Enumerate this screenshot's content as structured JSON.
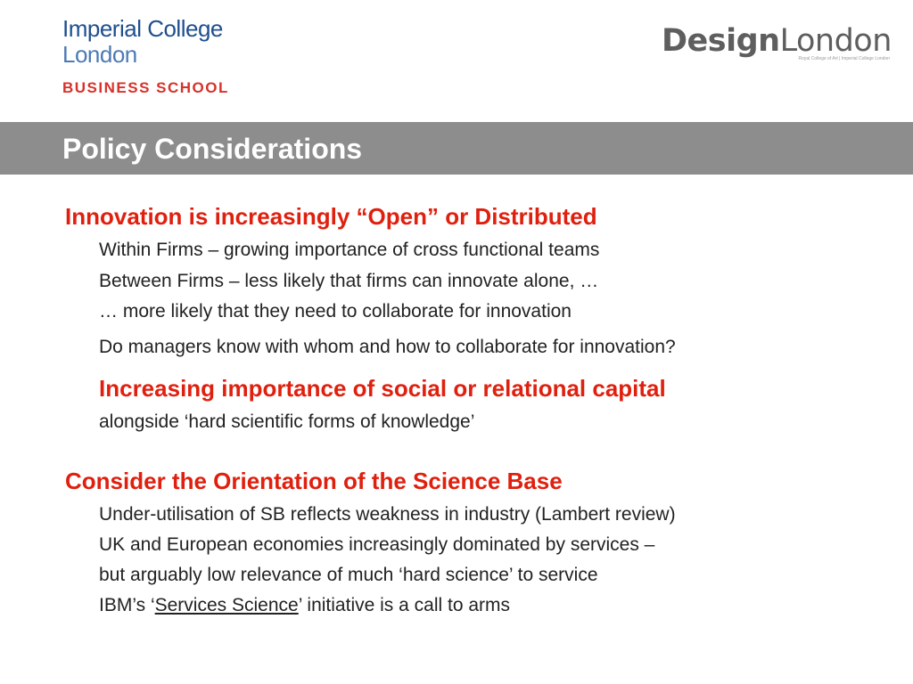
{
  "header": {
    "left_logo": {
      "line1": "Imperial College",
      "line2": "London",
      "line3": "BUSINESS  SCHOOL"
    },
    "right_logo": {
      "word_bold": "Design",
      "word_light": "London",
      "subtitle": "Royal College of Art | Imperial College London"
    }
  },
  "title": "Policy Considerations",
  "sections": [
    {
      "heading": "Innovation is increasingly “Open” or Distributed",
      "lines": [
        "Within Firms – growing importance of cross functional teams",
        "Between Firms – less likely that firms can innovate alone, …",
        "… more likely that they need to collaborate for innovation",
        "Do managers know with whom and how to collaborate for innovation?"
      ],
      "subheading": "Increasing importance of social or relational capital",
      "sub_line": "alongside ‘hard scientific forms of knowledge’"
    },
    {
      "heading": "Consider the Orientation of the Science Base",
      "lines": [
        "Under-utilisation of SB reflects weakness in industry (Lambert review)",
        "UK and European economies increasingly dominated by services –",
        "but arguably low relevance of much ‘hard science’ to service"
      ],
      "last_line": {
        "prefix": "IBM’s ‘",
        "link": "Services Science",
        "suffix": "’ initiative is a call to arms"
      }
    }
  ],
  "colors": {
    "heading_red": "#e0200f",
    "title_bar_gray": "#8d8d8d",
    "imperial_blue": "#1f4f8f"
  }
}
